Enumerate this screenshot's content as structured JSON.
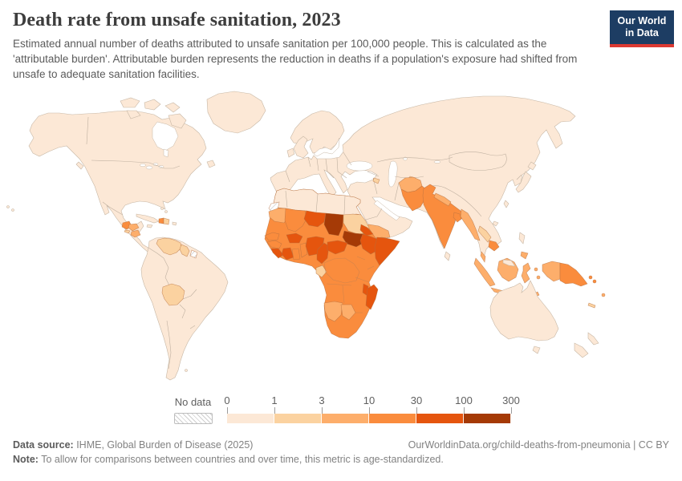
{
  "header": {
    "title": "Death rate from unsafe sanitation, 2023",
    "subtitle": "Estimated annual number of deaths attributed to unsafe sanitation per 100,000 people. This is calculated as the 'attributable burden'. Attributable burden represents the reduction in deaths if a population's exposure had shifted from unsafe to adequate sanitation facilities."
  },
  "logo": {
    "line1": "Our World",
    "line2": "in Data",
    "bg": "#1d3d63",
    "accent": "#dc3932"
  },
  "legend": {
    "no_data_label": "No data",
    "tick_labels": [
      "0",
      "1",
      "3",
      "10",
      "30",
      "100",
      "300"
    ],
    "bin_colors": [
      "#fce8d6",
      "#fbd2a0",
      "#fdae6b",
      "#fa8c3d",
      "#e5550e",
      "#a53a06"
    ],
    "no_data_pattern_color": "#cfcfcf"
  },
  "footer": {
    "data_source_label": "Data source:",
    "data_source": " IHME, Global Burden of Disease (2025)",
    "attribution": "OurWorldinData.org/child-deaths-from-pneumonia | CC BY",
    "note_label": "Note:",
    "note": " To allow for comparisons between countries and over time, this metric is age-standardized."
  },
  "chart_data": {
    "type": "choropleth",
    "title": "Death rate from unsafe sanitation, 2023",
    "year": 2023,
    "unit": "estimated annual deaths attributed to unsafe sanitation per 100,000 people (age-standardized)",
    "legend_values": [
      "0",
      "1",
      "3",
      "10",
      "30",
      "100",
      "300"
    ],
    "bin_ranges": [
      "0-1",
      "1-3",
      "3-10",
      "10-30",
      "30-100",
      "100-300"
    ],
    "bin_colors": [
      "#fce8d6",
      "#fbd2a0",
      "#fdae6b",
      "#fa8c3d",
      "#e5550e",
      "#a53a06"
    ],
    "default_bin": 0,
    "default_bin_regions_note": "North America, South America (most), Europe, Russia, China, Central Asia, Middle East (most), East Asia, Australia, New Zealand read as 0-1",
    "no_data_regions": [
      "Western Sahara",
      "French Guiana"
    ],
    "region_bins": {
      "venezuela": 1,
      "guyana": 1,
      "bolivia": 1,
      "dominican-republic": 1,
      "el-salvador": 1,
      "sudan": 1,
      "gabon-congo": 1,
      "laos": 1,
      "tajikistan": 1,
      "azerbaijan": 1,
      "new-caledonia": 1,
      "mauritania": 2,
      "namibia": 2,
      "botswana": 2,
      "honduras": 2,
      "nicaragua": 2,
      "afghanistan": 2,
      "nepal": 2,
      "myanmar": 2,
      "yemen": 2,
      "malaysia-peninsula": 2,
      "sumatra": 2,
      "java": 2,
      "borneo": 2,
      "sulawesi": 2,
      "maluku-1": 2,
      "maluku-2": 2,
      "timor": 2,
      "mindanao": 2,
      "west-papua": 2,
      "fiji": 2,
      "lesser-sunda-1": 2,
      "lesser-sunda-2": 2,
      "africa-base": 3,
      "mali": 3,
      "senegal": 3,
      "guinea": 3,
      "ghana": 3,
      "togo-benin": 3,
      "haiti": 3,
      "guatemala": 3,
      "india": 3,
      "pakistan": 3,
      "bangladesh": 3,
      "cambodia": 3,
      "papua-new-guinea": 3,
      "solomon-1": 3,
      "solomon-2": 3,
      "niger": 4,
      "nigeria": 4,
      "cameroon": 4,
      "central-african-republic": 4,
      "ethiopia": 4,
      "eritrea": 4,
      "somalia": 4,
      "cote-divoire": 4,
      "sierra-leone-liberia": 4,
      "burkina-faso": 4,
      "madagascar": 4,
      "malawi": 4,
      "chad": 5,
      "south-sudan": 5,
      "western-sahara": "nd",
      "french-guiana": "nd"
    },
    "sources": "IHME, Global Burden of Disease (2025)"
  }
}
